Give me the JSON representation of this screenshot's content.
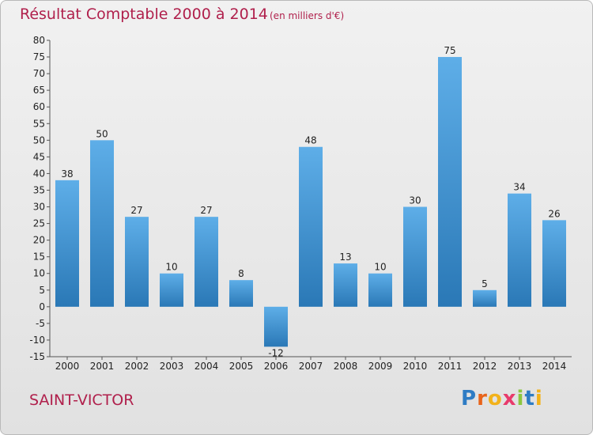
{
  "header": {
    "title": "Résultat Comptable 2000 à 2014",
    "subtitle": "(en milliers d'€)"
  },
  "footer": {
    "town": "SAINT-VICTOR",
    "logo": {
      "letters": [
        "P",
        "r",
        "o",
        "x",
        "i",
        "t",
        "i"
      ],
      "colors": [
        "#2e7cc4",
        "#e8641b",
        "#f2b21b",
        "#e83a6b",
        "#8cc63f",
        "#2e7cc4",
        "#f2b21b"
      ]
    }
  },
  "colors": {
    "bar_light": "#5eaee8",
    "bar_dark": "#2a78b6",
    "axis": "#555555",
    "grid": "#cfcfcf",
    "accent": "#b0204c"
  },
  "chart_data": {
    "type": "bar",
    "title": "Résultat Comptable 2000 à 2014",
    "subtitle": "(en milliers d'€)",
    "categories": [
      "2000",
      "2001",
      "2002",
      "2003",
      "2004",
      "2005",
      "2006",
      "2007",
      "2008",
      "2009",
      "2010",
      "2011",
      "2012",
      "2013",
      "2014"
    ],
    "values": [
      38,
      50,
      27,
      10,
      27,
      8,
      -12,
      48,
      13,
      10,
      30,
      75,
      5,
      34,
      26
    ],
    "ylim": [
      -15,
      80
    ],
    "yticks": [
      80,
      75,
      70,
      65,
      60,
      55,
      50,
      45,
      40,
      35,
      30,
      25,
      20,
      15,
      10,
      5,
      0,
      -5,
      -10,
      -15
    ],
    "ytick_labels": [
      "80",
      "75",
      "70",
      "65",
      "60",
      "55",
      "50",
      "45",
      "40",
      "35",
      "30",
      "25",
      "20",
      "15",
      "10",
      "5",
      "0",
      "-5",
      "-10",
      "-15"
    ],
    "xlabel": "",
    "ylabel": "",
    "grid": false,
    "legend": "none"
  }
}
